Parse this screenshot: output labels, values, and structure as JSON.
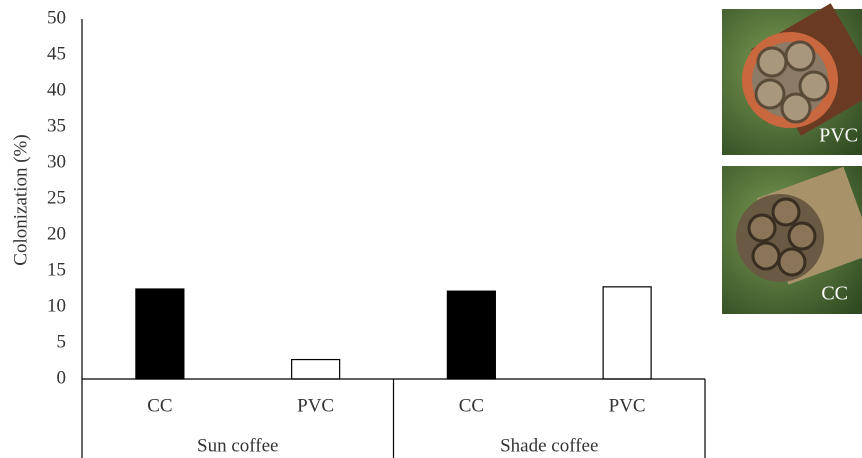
{
  "chart_data": {
    "type": "bar",
    "y_label": "Colonization (%)",
    "categories": [
      "CC",
      "PVC",
      "CC",
      "PVC"
    ],
    "groups": [
      "Sun coffee",
      "Shade coffee"
    ],
    "values": [
      12.5,
      2.7,
      12.2,
      12.8
    ],
    "colors": [
      "#000000",
      "#ffffff",
      "#000000",
      "#ffffff"
    ],
    "ylim": [
      0,
      50
    ],
    "yticks": [
      0,
      5,
      10,
      15,
      20,
      25,
      30,
      35,
      40,
      45,
      50
    ],
    "grid": false
  },
  "photos": [
    "PVC",
    "CC"
  ]
}
